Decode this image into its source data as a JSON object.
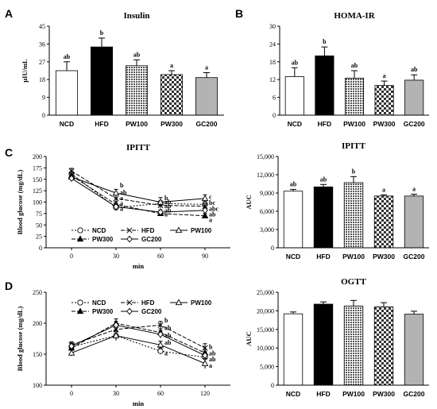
{
  "colors": {
    "NCD": "#ffffff",
    "HFD": "#000000",
    "PW100": "#6e6e6e",
    "PW300": "#d8d8d8",
    "GC200": "#b3b3b3"
  },
  "patterns": {
    "PW100": "dense-dots",
    "PW300": "checkerboard"
  },
  "panel_labels": [
    "A",
    "B",
    "C",
    "D"
  ],
  "chart_data": [
    {
      "id": "insulin",
      "panel": "A",
      "type": "bar",
      "title": "Insulin",
      "ylabel": "μIU/mL",
      "categories": [
        "NCD",
        "HFD",
        "PW100",
        "PW300",
        "GC200"
      ],
      "values": [
        22.5,
        34.5,
        25.0,
        20.5,
        19.0
      ],
      "errors": [
        4.5,
        4.5,
        3.0,
        2.0,
        2.5
      ],
      "sig": [
        "ab",
        "b",
        "ab",
        "a",
        "a"
      ],
      "ylim": [
        0,
        45
      ],
      "yticks": [
        0,
        9,
        18,
        27,
        36,
        45
      ],
      "ytick_labels": [
        "0",
        "9",
        "18",
        "27",
        "36",
        "45"
      ]
    },
    {
      "id": "homa",
      "panel": "B",
      "type": "bar",
      "title": "HOMA-IR",
      "ylabel": "",
      "categories": [
        "NCD",
        "HFD",
        "PW100",
        "PW300",
        "GC200"
      ],
      "values": [
        13.0,
        20.0,
        12.5,
        10.0,
        11.8
      ],
      "errors": [
        3.0,
        3.0,
        2.5,
        1.5,
        1.8
      ],
      "sig": [
        "ab",
        "b",
        "ab",
        "a",
        "ab"
      ],
      "ylim": [
        0,
        30
      ],
      "yticks": [
        0,
        6,
        12,
        18,
        24,
        30
      ],
      "ytick_labels": [
        "0",
        "6",
        "12",
        "18",
        "24",
        "30"
      ]
    },
    {
      "id": "ipitt_line",
      "panel": "C",
      "type": "line",
      "title": "IPITT",
      "ylabel": "Blood glucose (mg/dL)",
      "xlabel": "min",
      "x": [
        0,
        30,
        60,
        90
      ],
      "xtick_labels": [
        "0",
        "30",
        "60",
        "90"
      ],
      "ylim": [
        0,
        200
      ],
      "yticks": [
        0,
        25,
        50,
        75,
        100,
        125,
        150,
        175,
        200
      ],
      "ytick_labels": [
        "0",
        "25",
        "50",
        "75",
        "100",
        "125",
        "150",
        "175",
        "200"
      ],
      "series": [
        {
          "name": "NCD",
          "values": [
            162,
            88,
            97,
            95
          ],
          "errors": [
            5,
            5,
            6,
            6
          ],
          "marker": "circle-open",
          "dash": "2,2"
        },
        {
          "name": "HFD",
          "values": [
            168,
            108,
            93,
            91
          ],
          "errors": [
            6,
            8,
            7,
            6
          ],
          "marker": "x",
          "dash": "5,2"
        },
        {
          "name": "PW100",
          "values": [
            155,
            120,
            100,
            108
          ],
          "errors": [
            5,
            8,
            10,
            8
          ],
          "marker": "triangle-open",
          "dash": ""
        },
        {
          "name": "PW300",
          "values": [
            158,
            95,
            75,
            70
          ],
          "errors": [
            5,
            6,
            5,
            5
          ],
          "marker": "triangle-filled",
          "dash": "5,2"
        },
        {
          "name": "GC200",
          "values": [
            152,
            90,
            78,
            82
          ],
          "errors": [
            5,
            6,
            5,
            6
          ],
          "marker": "diamond-open",
          "dash": ""
        }
      ],
      "annotations": [
        {
          "x": 30,
          "y": 137,
          "text": "b"
        },
        {
          "x": 30,
          "y": 122,
          "text": "ab"
        },
        {
          "x": 30,
          "y": 110,
          "text": "a"
        },
        {
          "x": 30,
          "y": 98,
          "text": "a"
        },
        {
          "x": 30,
          "y": 86,
          "text": "a"
        },
        {
          "x": 60,
          "y": 110,
          "text": "b"
        },
        {
          "x": 60,
          "y": 101,
          "text": "ab"
        },
        {
          "x": 60,
          "y": 92,
          "text": "ab"
        },
        {
          "x": 60,
          "y": 83,
          "text": "ab"
        },
        {
          "x": 60,
          "y": 74,
          "text": "a"
        },
        {
          "x": 90,
          "y": 112,
          "text": "c"
        },
        {
          "x": 90,
          "y": 99,
          "text": "bc"
        },
        {
          "x": 90,
          "y": 86,
          "text": "abc"
        },
        {
          "x": 90,
          "y": 74,
          "text": "ab"
        },
        {
          "x": 90,
          "y": 62,
          "text": "a"
        }
      ],
      "legend_rows": [
        [
          "NCD",
          "HFD",
          "PW100"
        ],
        [
          "PW300",
          "GC200"
        ]
      ]
    },
    {
      "id": "ipitt_auc",
      "panel": "",
      "type": "bar",
      "title": "IPITT",
      "ylabel": "AUC",
      "categories": [
        "NCD",
        "HFD",
        "PW100",
        "PW300",
        "GC200"
      ],
      "values": [
        9300,
        10000,
        10700,
        8500,
        8500
      ],
      "errors": [
        300,
        400,
        1000,
        200,
        300
      ],
      "sig": [
        "ab",
        "ab",
        "b",
        "a",
        "a"
      ],
      "ylim": [
        0,
        15000
      ],
      "yticks": [
        0,
        3000,
        6000,
        9000,
        12000,
        15000
      ],
      "ytick_labels": [
        "0",
        "3,000",
        "6,000",
        "9,000",
        "12,000",
        "15,000"
      ]
    },
    {
      "id": "ogtt_line",
      "panel": "D",
      "type": "line",
      "title": "",
      "ylabel": "Blood glucose (mg/dL)",
      "xlabel": "min",
      "x": [
        0,
        30,
        60,
        120
      ],
      "xtick_labels": [
        "0",
        "30",
        "60",
        "120"
      ],
      "ylim": [
        100,
        250
      ],
      "yticks": [
        100,
        150,
        200,
        250
      ],
      "ytick_labels": [
        "100",
        "150",
        "200",
        "250"
      ],
      "series": [
        {
          "name": "NCD",
          "values": [
            162,
            180,
            155,
            145
          ],
          "errors": [
            5,
            6,
            5,
            6
          ],
          "marker": "circle-open",
          "dash": "2,2"
        },
        {
          "name": "HFD",
          "values": [
            165,
            190,
            197,
            160
          ],
          "errors": [
            5,
            7,
            6,
            7
          ],
          "marker": "x",
          "dash": "5,2"
        },
        {
          "name": "PW100",
          "values": [
            152,
            180,
            165,
            135
          ],
          "errors": [
            5,
            8,
            6,
            8
          ],
          "marker": "triangle-open",
          "dash": ""
        },
        {
          "name": "PW300",
          "values": [
            160,
            200,
            185,
            152
          ],
          "errors": [
            5,
            7,
            6,
            6
          ],
          "marker": "triangle-filled",
          "dash": "5,2"
        },
        {
          "name": "GC200",
          "values": [
            163,
            197,
            182,
            148
          ],
          "errors": [
            5,
            6,
            6,
            6
          ],
          "marker": "diamond-open",
          "dash": ""
        }
      ],
      "annotations": [
        {
          "x": 60,
          "y": 205,
          "text": "b"
        },
        {
          "x": 60,
          "y": 193,
          "text": "ab"
        },
        {
          "x": 60,
          "y": 181,
          "text": "ab"
        },
        {
          "x": 60,
          "y": 169,
          "text": "ab"
        },
        {
          "x": 60,
          "y": 152,
          "text": "a"
        },
        {
          "x": 120,
          "y": 162,
          "text": "b"
        },
        {
          "x": 120,
          "y": 152,
          "text": "ab"
        },
        {
          "x": 120,
          "y": 142,
          "text": "ab"
        },
        {
          "x": 120,
          "y": 132,
          "text": "a"
        }
      ],
      "legend_rows": [
        [
          "NCD",
          "HFD",
          "PW100"
        ],
        [
          "PW300",
          "GC200"
        ]
      ]
    },
    {
      "id": "ogtt_auc",
      "panel": "",
      "type": "bar",
      "title": "OGTT",
      "ylabel": "AUC",
      "categories": [
        "NCD",
        "HFD",
        "PW100",
        "PW300",
        "GC200"
      ],
      "values": [
        19200,
        21800,
        21300,
        21100,
        19100
      ],
      "errors": [
        500,
        600,
        1500,
        1100,
        800
      ],
      "sig": [
        "",
        "",
        "",
        "",
        ""
      ],
      "ylim": [
        0,
        25000
      ],
      "yticks": [
        0,
        5000,
        10000,
        15000,
        20000,
        25000
      ],
      "ytick_labels": [
        "0",
        "5,000",
        "10,000",
        "15,000",
        "20,000",
        "25,000"
      ]
    }
  ],
  "ogtt_line_title": "OGTT"
}
